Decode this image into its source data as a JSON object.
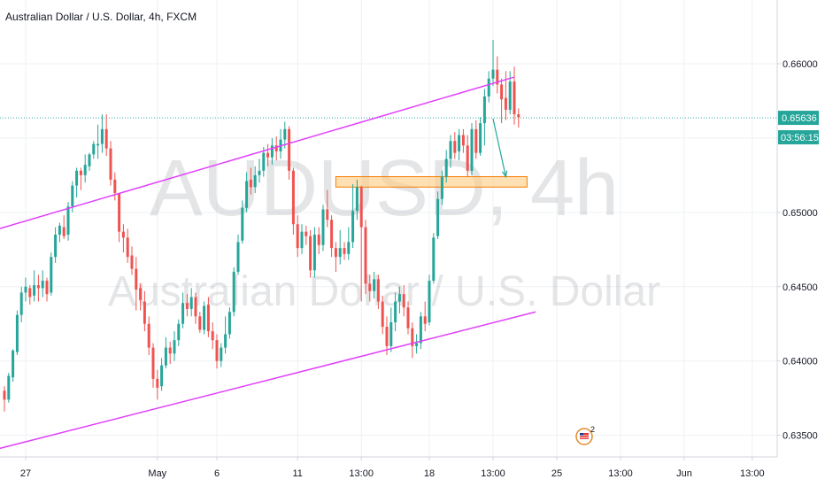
{
  "header": {
    "symbol_title": "Australian Dollar / U.S. Dollar, 4h, FXCM"
  },
  "watermark": {
    "ticker": "AUDUSD, 4h",
    "description": "Australian Dollar / U.S. Dollar"
  },
  "price_axis": {
    "current_price_label": "0.65636",
    "countdown_label": "03:56:15"
  },
  "colors": {
    "bull": "#26a69a",
    "bear": "#ef5350",
    "channel": "#e040fb",
    "zone_fill": "#ffcc80",
    "zone_border": "#f57c00",
    "arrow": "#26a69a",
    "price_line": "#26a69a",
    "grid": "#eef0f3"
  },
  "icons": {
    "badge": "flag-badge-icon"
  },
  "badge_count": "2",
  "chart_data": {
    "type": "candlestick",
    "title": "Australian Dollar / U.S. Dollar, 4h, FXCM",
    "xlabel": "",
    "ylabel": "",
    "ylim": [
      0.6345,
      0.6625
    ],
    "grid": true,
    "y_ticks": [
      "0.66000",
      "0.65500",
      "0.65000",
      "0.64500",
      "0.64000",
      "0.63500"
    ],
    "y_tick_values": [
      0.66,
      0.655,
      0.65,
      0.645,
      0.64,
      0.635
    ],
    "x_ticks": [
      {
        "label": "27",
        "bar": 5
      },
      {
        "label": "May",
        "bar": 36
      },
      {
        "label": "6",
        "bar": 50
      },
      {
        "label": "11",
        "bar": 69
      },
      {
        "label": "13:00",
        "bar": 84
      },
      {
        "label": "18",
        "bar": 100
      },
      {
        "label": "13:00",
        "bar": 115
      },
      {
        "label": "25",
        "bar": 130
      },
      {
        "label": "13:00",
        "bar": 145
      },
      {
        "label": "Jun",
        "bar": 160
      },
      {
        "label": "13:00",
        "bar": 176
      }
    ],
    "last_price": 0.65636,
    "candles": [
      [
        0.638,
        0.6374,
        0.6366,
        0.6383
      ],
      [
        0.6374,
        0.639,
        0.6372,
        0.6392
      ],
      [
        0.6389,
        0.6407,
        0.6386,
        0.6408
      ],
      [
        0.6406,
        0.6431,
        0.6404,
        0.6434
      ],
      [
        0.6431,
        0.6446,
        0.6426,
        0.645
      ],
      [
        0.6446,
        0.645,
        0.644,
        0.6456
      ],
      [
        0.6449,
        0.6443,
        0.6438,
        0.6451
      ],
      [
        0.6444,
        0.6451,
        0.644,
        0.6461
      ],
      [
        0.6451,
        0.6449,
        0.644,
        0.6458
      ],
      [
        0.6449,
        0.6454,
        0.6443,
        0.6461
      ],
      [
        0.6454,
        0.6445,
        0.644,
        0.6456
      ],
      [
        0.6446,
        0.647,
        0.6444,
        0.6473
      ],
      [
        0.647,
        0.6485,
        0.6466,
        0.649
      ],
      [
        0.6485,
        0.6491,
        0.648,
        0.6493
      ],
      [
        0.649,
        0.6484,
        0.6482,
        0.6498
      ],
      [
        0.6485,
        0.6504,
        0.6481,
        0.6507
      ],
      [
        0.6504,
        0.6518,
        0.65,
        0.6521
      ],
      [
        0.6518,
        0.6528,
        0.651,
        0.653
      ],
      [
        0.6528,
        0.6525,
        0.6515,
        0.653
      ],
      [
        0.6525,
        0.6532,
        0.652,
        0.6539
      ],
      [
        0.6531,
        0.6539,
        0.6528,
        0.654
      ],
      [
        0.6539,
        0.6546,
        0.6536,
        0.6548
      ],
      [
        0.6545,
        0.6546,
        0.6536,
        0.6559
      ],
      [
        0.6546,
        0.6556,
        0.654,
        0.6566
      ],
      [
        0.6556,
        0.6543,
        0.6538,
        0.6566
      ],
      [
        0.6543,
        0.6522,
        0.6518,
        0.6548
      ],
      [
        0.6522,
        0.6513,
        0.6508,
        0.6527
      ],
      [
        0.6513,
        0.6487,
        0.648,
        0.6513
      ],
      [
        0.6487,
        0.6483,
        0.6473,
        0.6492
      ],
      [
        0.6483,
        0.647,
        0.6466,
        0.6489
      ],
      [
        0.6471,
        0.6462,
        0.6458,
        0.6477
      ],
      [
        0.6462,
        0.6448,
        0.6434,
        0.647
      ],
      [
        0.6449,
        0.6441,
        0.6434,
        0.6452
      ],
      [
        0.644,
        0.6425,
        0.642,
        0.6447
      ],
      [
        0.6425,
        0.6409,
        0.6404,
        0.643
      ],
      [
        0.6409,
        0.6388,
        0.6382,
        0.6412
      ],
      [
        0.6388,
        0.6382,
        0.6374,
        0.6394
      ],
      [
        0.6383,
        0.6397,
        0.638,
        0.6402
      ],
      [
        0.6397,
        0.6409,
        0.6395,
        0.6416
      ],
      [
        0.6409,
        0.6405,
        0.6398,
        0.6413
      ],
      [
        0.6405,
        0.6414,
        0.64,
        0.642
      ],
      [
        0.6414,
        0.6425,
        0.641,
        0.6428
      ],
      [
        0.6425,
        0.6439,
        0.6422,
        0.6446
      ],
      [
        0.6439,
        0.6435,
        0.643,
        0.6445
      ],
      [
        0.6435,
        0.6443,
        0.643,
        0.6449
      ],
      [
        0.6443,
        0.643,
        0.6425,
        0.6446
      ],
      [
        0.643,
        0.6421,
        0.6419,
        0.6433
      ],
      [
        0.6421,
        0.6437,
        0.6418,
        0.644
      ],
      [
        0.6438,
        0.642,
        0.6416,
        0.6443
      ],
      [
        0.642,
        0.6414,
        0.6408,
        0.6426
      ],
      [
        0.6414,
        0.64,
        0.6395,
        0.6418
      ],
      [
        0.64,
        0.6409,
        0.6396,
        0.6412
      ],
      [
        0.6409,
        0.6418,
        0.6405,
        0.643
      ],
      [
        0.6418,
        0.6433,
        0.6415,
        0.6436
      ],
      [
        0.6433,
        0.646,
        0.643,
        0.6463
      ],
      [
        0.646,
        0.648,
        0.6458,
        0.6485
      ],
      [
        0.6481,
        0.6503,
        0.6479,
        0.6508
      ],
      [
        0.6503,
        0.6521,
        0.65,
        0.6527
      ],
      [
        0.6522,
        0.6517,
        0.6512,
        0.653
      ],
      [
        0.6517,
        0.6525,
        0.6513,
        0.6531
      ],
      [
        0.6525,
        0.6528,
        0.652,
        0.6536
      ],
      [
        0.6528,
        0.654,
        0.6524,
        0.6544
      ],
      [
        0.654,
        0.6537,
        0.6531,
        0.6546
      ],
      [
        0.6537,
        0.6545,
        0.6532,
        0.655
      ],
      [
        0.6545,
        0.6541,
        0.6535,
        0.6551
      ],
      [
        0.6541,
        0.6549,
        0.6536,
        0.6556
      ],
      [
        0.6549,
        0.6556,
        0.6543,
        0.6561
      ],
      [
        0.6556,
        0.6528,
        0.6522,
        0.6558
      ],
      [
        0.6528,
        0.6492,
        0.6485,
        0.653
      ],
      [
        0.6492,
        0.6476,
        0.647,
        0.6498
      ],
      [
        0.6476,
        0.6487,
        0.6472,
        0.6492
      ],
      [
        0.6487,
        0.6484,
        0.6478,
        0.6491
      ],
      [
        0.6484,
        0.6461,
        0.6456,
        0.6488
      ],
      [
        0.6461,
        0.6485,
        0.6456,
        0.649
      ],
      [
        0.6485,
        0.6478,
        0.6472,
        0.649
      ],
      [
        0.6478,
        0.6502,
        0.6474,
        0.6505
      ],
      [
        0.6502,
        0.6495,
        0.649,
        0.6515
      ],
      [
        0.6495,
        0.6476,
        0.647,
        0.6498
      ],
      [
        0.6476,
        0.647,
        0.646,
        0.648
      ],
      [
        0.647,
        0.6476,
        0.6465,
        0.6488
      ],
      [
        0.6476,
        0.6472,
        0.6468,
        0.648
      ],
      [
        0.6472,
        0.648,
        0.6468,
        0.649
      ],
      [
        0.648,
        0.6501,
        0.6476,
        0.6519
      ],
      [
        0.6501,
        0.6517,
        0.6495,
        0.6522
      ],
      [
        0.6517,
        0.649,
        0.644,
        0.6518
      ],
      [
        0.649,
        0.6452,
        0.6445,
        0.6495
      ],
      [
        0.6452,
        0.6447,
        0.644,
        0.6458
      ],
      [
        0.6447,
        0.6455,
        0.6442,
        0.646
      ],
      [
        0.6455,
        0.644,
        0.6435,
        0.6458
      ],
      [
        0.644,
        0.6423,
        0.6418,
        0.6444
      ],
      [
        0.6423,
        0.641,
        0.6404,
        0.643
      ],
      [
        0.641,
        0.6426,
        0.6406,
        0.6436
      ],
      [
        0.6426,
        0.644,
        0.642,
        0.6446
      ],
      [
        0.644,
        0.6445,
        0.6432,
        0.645
      ],
      [
        0.6445,
        0.6436,
        0.643,
        0.6451
      ],
      [
        0.6436,
        0.6422,
        0.6418,
        0.644
      ],
      [
        0.6422,
        0.641,
        0.6402,
        0.6426
      ],
      [
        0.641,
        0.6412,
        0.6405,
        0.6418
      ],
      [
        0.6412,
        0.643,
        0.6408,
        0.6433
      ],
      [
        0.643,
        0.6425,
        0.642,
        0.644
      ],
      [
        0.6426,
        0.6454,
        0.6424,
        0.6458
      ],
      [
        0.6454,
        0.6483,
        0.6452,
        0.6486
      ],
      [
        0.6484,
        0.6509,
        0.6482,
        0.6514
      ],
      [
        0.6509,
        0.6524,
        0.6505,
        0.6528
      ],
      [
        0.6524,
        0.6536,
        0.652,
        0.6542
      ],
      [
        0.6536,
        0.6548,
        0.653,
        0.6552
      ],
      [
        0.6548,
        0.654,
        0.6536,
        0.6554
      ],
      [
        0.6541,
        0.6552,
        0.6535,
        0.6556
      ],
      [
        0.6552,
        0.6545,
        0.654,
        0.6556
      ],
      [
        0.6545,
        0.6528,
        0.6524,
        0.6552
      ],
      [
        0.6528,
        0.6556,
        0.6525,
        0.656
      ],
      [
        0.6556,
        0.654,
        0.6536,
        0.6562
      ],
      [
        0.654,
        0.656,
        0.6538,
        0.6564
      ],
      [
        0.656,
        0.6578,
        0.6545,
        0.6583
      ],
      [
        0.6578,
        0.659,
        0.6574,
        0.6595
      ],
      [
        0.659,
        0.6596,
        0.6585,
        0.6616
      ],
      [
        0.6596,
        0.6586,
        0.658,
        0.6605
      ],
      [
        0.6586,
        0.6576,
        0.656,
        0.659
      ],
      [
        0.6577,
        0.6569,
        0.6562,
        0.6595
      ],
      [
        0.6569,
        0.6588,
        0.6566,
        0.6595
      ],
      [
        0.6588,
        0.6566,
        0.6559,
        0.6598
      ],
      [
        0.6566,
        0.6564,
        0.6557,
        0.657
      ]
    ],
    "channel_upper": [
      [
        0,
        0.649
      ],
      [
        120,
        0.6591
      ]
    ],
    "channel_lower": [
      [
        0,
        0.6342
      ],
      [
        125,
        0.6433
      ]
    ],
    "zone": {
      "bar_from": 78,
      "bar_to": 123,
      "price_top": 0.6524,
      "price_bottom": 0.6517
    },
    "arrow": {
      "from": [
        115,
        0.6563
      ],
      "to": [
        118,
        0.6524
      ]
    }
  }
}
